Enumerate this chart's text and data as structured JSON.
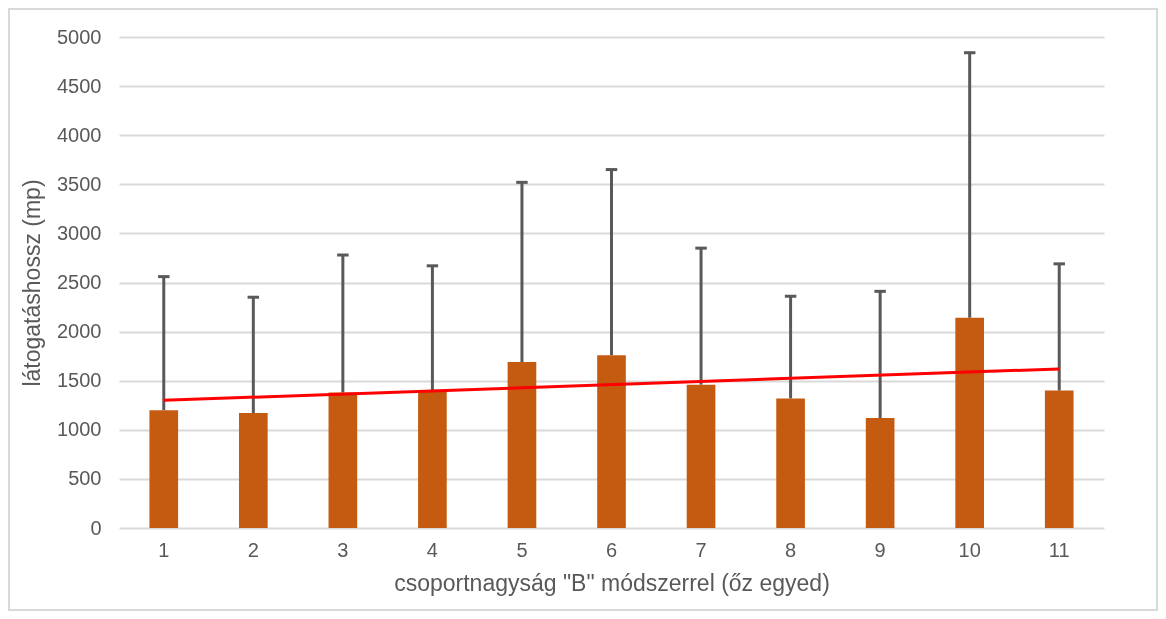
{
  "chart_data": {
    "type": "bar",
    "xlabel": "csoportnagyság \"B\" módszerrel (őz egyed)",
    "ylabel": "látogatáshossz (mp)",
    "categories": [
      "1",
      "2",
      "3",
      "4",
      "5",
      "6",
      "7",
      "8",
      "9",
      "10",
      "11"
    ],
    "ylim": [
      0,
      5000
    ],
    "yticks": [
      0,
      500,
      1000,
      1500,
      2000,
      2500,
      3000,
      3500,
      4000,
      4500,
      5000
    ],
    "grid": "y",
    "series": [
      {
        "color": "#c55a11",
        "values": [
          1200,
          1170,
          1380,
          1400,
          1690,
          1760,
          1460,
          1320,
          1120,
          2140,
          1400
        ],
        "errors": [
          [
            1200,
            2560
          ],
          [
            1170,
            2350
          ],
          [
            1380,
            2780
          ],
          [
            1400,
            2670
          ],
          [
            1690,
            3520
          ],
          [
            1760,
            3650
          ],
          [
            1460,
            2850
          ],
          [
            1320,
            2360
          ],
          [
            1120,
            2410
          ],
          [
            2140,
            4840
          ],
          [
            1400,
            2690
          ]
        ]
      },
      {
        "type": "line",
        "color": "#ff0000",
        "x": [
          "1",
          "11"
        ],
        "values": [
          1300,
          1620
        ]
      }
    ]
  }
}
